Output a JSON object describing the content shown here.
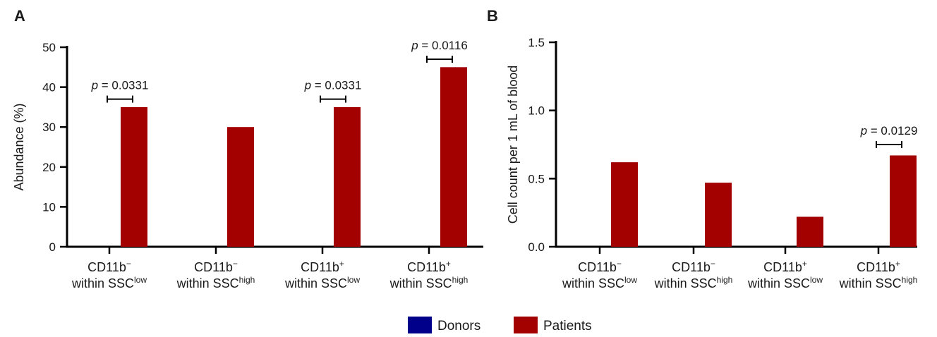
{
  "colors": {
    "donors": "#00008b",
    "patients": "#a30000",
    "axis": "#000000"
  },
  "legend": [
    {
      "label": "Donors",
      "color": "#00008b"
    },
    {
      "label": "Patients",
      "color": "#a30000"
    }
  ],
  "chart_data": [
    {
      "panel": "A",
      "type": "bar",
      "ylabel": "Abundance  (%)",
      "ylim": [
        0,
        50
      ],
      "yticks": [
        "0",
        "10",
        "20",
        "30",
        "40",
        "50"
      ],
      "categories": [
        {
          "line1": "CD11b",
          "sign": "−",
          "line2": "within SSC",
          "sup": "low"
        },
        {
          "line1": "CD11b",
          "sign": "−",
          "line2": "within SSC",
          "sup": "high"
        },
        {
          "line1": "CD11b",
          "sign": "+",
          "line2": "within SSC",
          "sup": "low"
        },
        {
          "line1": "CD11b",
          "sign": "+",
          "line2": "within SSC",
          "sup": "high"
        }
      ],
      "series": [
        {
          "name": "Donors",
          "values": [
            0,
            0,
            0,
            0
          ]
        },
        {
          "name": "Patients",
          "values": [
            35,
            30,
            35,
            45
          ]
        }
      ],
      "annotations": [
        {
          "category": 0,
          "p_label": "p",
          "p_value": " = 0.0331",
          "y": 37
        },
        {
          "category": 2,
          "p_label": "p",
          "p_value": " = 0.0331",
          "y": 37
        },
        {
          "category": 3,
          "p_label": "p",
          "p_value": " = 0.0116",
          "y": 47
        }
      ]
    },
    {
      "panel": "B",
      "type": "bar",
      "ylabel": "Cell count per 1 mL of blood",
      "ylim": [
        0,
        1.5
      ],
      "yticks": [
        "0.0",
        "0.5",
        "1.0",
        "1.5"
      ],
      "categories": [
        {
          "line1": "CD11b",
          "sign": "−",
          "line2": "within SSC",
          "sup": "low"
        },
        {
          "line1": "CD11b",
          "sign": "−",
          "line2": "within SSC",
          "sup": "high"
        },
        {
          "line1": "CD11b",
          "sign": "+",
          "line2": "within SSC",
          "sup": "low"
        },
        {
          "line1": "CD11b",
          "sign": "+",
          "line2": "within SSC",
          "sup": "high"
        }
      ],
      "series": [
        {
          "name": "Donors",
          "values": [
            0,
            0,
            0,
            0
          ]
        },
        {
          "name": "Patients",
          "values": [
            0.62,
            0.47,
            0.22,
            0.67
          ]
        }
      ],
      "annotations": [
        {
          "category": 3,
          "p_label": "p",
          "p_value": " = 0.0129",
          "y": 0.75
        }
      ]
    }
  ]
}
